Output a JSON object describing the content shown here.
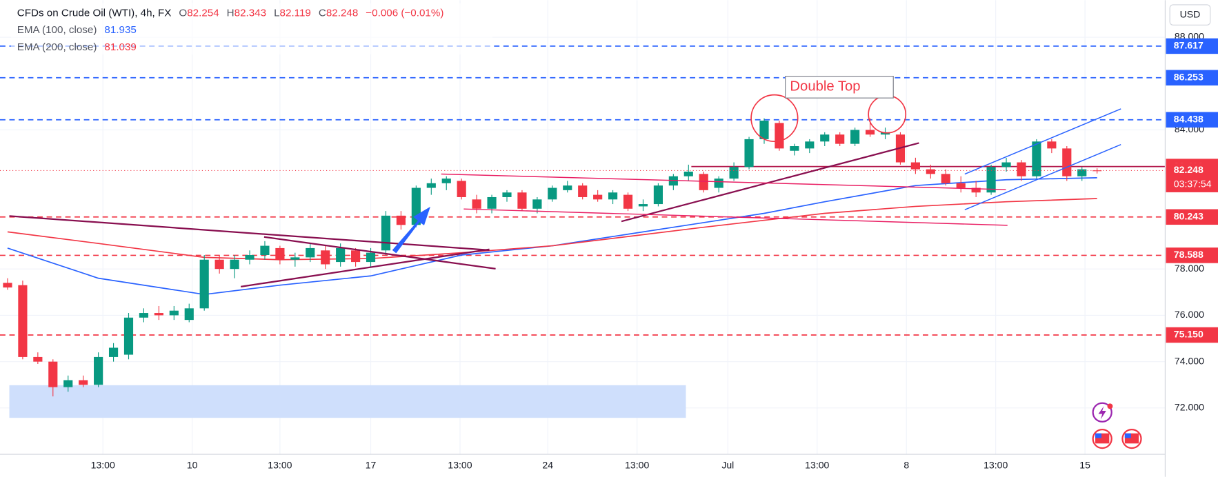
{
  "chart_data": {
    "type": "candlestick",
    "title": "CFDs on Crude Oil (WTI), 4h, FX",
    "ohlc_labels": [
      "O",
      "H",
      "L",
      "C"
    ],
    "change": "−0.006 (−0.01%)",
    "currency": "USD",
    "annotation": "Double Top",
    "countdown": "03:37:54",
    "up_color": "#089981",
    "down_color": "#f23645",
    "grid": true,
    "xlim": [
      -0.5,
      76.5
    ],
    "ylim": [
      70,
      89.6
    ],
    "xticks": [
      {
        "value": 6.3,
        "label": "13:00"
      },
      {
        "value": 12.2,
        "label": "10"
      },
      {
        "value": 18.0,
        "label": "13:00"
      },
      {
        "value": 24.0,
        "label": "17"
      },
      {
        "value": 29.9,
        "label": "13:00"
      },
      {
        "value": 35.7,
        "label": "24"
      },
      {
        "value": 41.6,
        "label": "13:00"
      },
      {
        "value": 47.6,
        "label": "Jul"
      },
      {
        "value": 53.5,
        "label": "13:00"
      },
      {
        "value": 59.4,
        "label": "8"
      },
      {
        "value": 65.3,
        "label": "13:00"
      },
      {
        "value": 71.2,
        "label": "15"
      }
    ],
    "yticks": [
      {
        "value": 72,
        "label": "72.000"
      },
      {
        "value": 74,
        "label": "74.000"
      },
      {
        "value": 76,
        "label": "76.000"
      },
      {
        "value": 78,
        "label": "78.000"
      },
      {
        "value": 84,
        "label": "84.000"
      },
      {
        "value": 88,
        "label": "88.000"
      }
    ],
    "open": [
      77.4,
      77.3,
      74.2,
      74.0,
      72.9,
      73.2,
      73.0,
      74.2,
      74.3,
      75.9,
      76.1,
      76.0,
      75.8,
      76.3,
      78.4,
      78.0,
      78.4,
      78.6,
      78.9,
      78.4,
      78.5,
      78.8,
      78.3,
      78.8,
      78.3,
      78.8,
      80.3,
      79.9,
      81.5,
      81.7,
      81.8,
      81.0,
      80.6,
      81.1,
      81.3,
      80.6,
      81.0,
      81.4,
      81.6,
      81.2,
      81.0,
      81.2,
      80.7,
      80.8,
      81.6,
      82.0,
      82.1,
      81.5,
      81.9,
      82.4,
      83.6,
      84.3,
      83.1,
      83.2,
      83.5,
      83.8,
      83.4,
      84.0,
      83.8,
      83.8,
      82.6,
      82.3,
      82.1,
      81.7,
      81.5,
      81.3,
      82.4,
      82.6,
      82.0,
      83.5,
      83.2,
      82.0,
      82.254
    ],
    "high": [
      77.6,
      77.5,
      74.4,
      74.1,
      73.4,
      73.4,
      74.4,
      74.8,
      76.1,
      76.3,
      76.4,
      76.4,
      76.5,
      78.6,
      78.6,
      78.6,
      78.8,
      79.2,
      79.0,
      78.7,
      79.1,
      79.0,
      79.1,
      78.9,
      78.9,
      80.5,
      80.5,
      81.6,
      81.9,
      82.0,
      81.9,
      81.2,
      81.2,
      81.4,
      81.4,
      81.1,
      81.6,
      81.8,
      81.7,
      81.4,
      81.4,
      81.3,
      81.0,
      81.7,
      82.1,
      82.5,
      82.2,
      82.0,
      82.6,
      83.7,
      84.5,
      84.4,
      83.4,
      83.6,
      83.9,
      83.9,
      84.1,
      84.5,
      84.1,
      83.9,
      82.8,
      82.5,
      82.3,
      82.0,
      81.8,
      82.5,
      82.8,
      82.7,
      83.6,
      83.6,
      83.3,
      82.4,
      82.343
    ],
    "low": [
      77.1,
      74.1,
      73.9,
      72.5,
      72.7,
      72.9,
      72.9,
      74.0,
      74.1,
      75.7,
      75.8,
      75.8,
      75.7,
      76.2,
      77.8,
      77.6,
      78.2,
      78.4,
      78.2,
      78.1,
      78.3,
      78.0,
      78.1,
      78.1,
      78.1,
      78.6,
      79.7,
      79.8,
      81.2,
      81.4,
      81.0,
      80.4,
      80.4,
      80.9,
      80.5,
      80.4,
      80.9,
      81.3,
      81.0,
      80.9,
      80.8,
      80.5,
      80.5,
      80.7,
      81.4,
      81.8,
      81.3,
      81.3,
      81.8,
      82.3,
      83.4,
      83.1,
      82.9,
      83.0,
      83.3,
      83.3,
      83.3,
      83.7,
      83.6,
      82.5,
      82.1,
      81.9,
      81.6,
      81.3,
      81.1,
      81.2,
      82.2,
      81.8,
      81.9,
      83.0,
      81.8,
      81.8,
      82.119
    ],
    "close": [
      77.2,
      74.2,
      74.0,
      72.9,
      73.2,
      73.0,
      74.2,
      74.6,
      75.9,
      76.1,
      76.0,
      76.2,
      76.3,
      78.4,
      78.0,
      78.4,
      78.6,
      79.0,
      78.4,
      78.5,
      78.9,
      78.2,
      78.9,
      78.3,
      78.7,
      80.3,
      79.9,
      81.5,
      81.7,
      81.9,
      81.1,
      80.6,
      81.1,
      81.3,
      80.6,
      81.0,
      81.5,
      81.6,
      81.1,
      81.0,
      81.3,
      80.6,
      80.8,
      81.6,
      82.0,
      82.2,
      81.4,
      81.9,
      82.4,
      83.6,
      84.4,
      83.2,
      83.3,
      83.5,
      83.8,
      83.4,
      84.0,
      83.8,
      83.9,
      82.6,
      82.3,
      82.1,
      81.7,
      81.5,
      81.3,
      82.4,
      82.6,
      82.0,
      83.5,
      83.2,
      82.0,
      82.3,
      82.248
    ],
    "series": [
      {
        "name": "EMA (100, close)",
        "color": "#2962ff",
        "x": [
          0,
          6,
          13,
          18,
          24,
          30,
          36,
          41,
          46,
          50,
          54,
          60,
          66,
          72
        ],
        "values": [
          78.9,
          77.6,
          76.9,
          77.3,
          77.7,
          78.6,
          79.0,
          79.5,
          80.0,
          80.4,
          80.9,
          81.6,
          81.85,
          81.935
        ]
      },
      {
        "name": "EMA (200, close)",
        "color": "#f23645",
        "x": [
          0,
          6,
          13,
          18,
          24,
          30,
          36,
          41,
          46,
          50,
          54,
          60,
          66,
          72
        ],
        "values": [
          79.6,
          79.1,
          78.5,
          78.4,
          78.45,
          78.7,
          79.0,
          79.4,
          79.8,
          80.1,
          80.4,
          80.7,
          80.9,
          81.039
        ]
      }
    ],
    "levels": [
      {
        "value": 87.617,
        "color": "#2962ff",
        "style": "dashed"
      },
      {
        "value": 86.253,
        "color": "#2962ff",
        "style": "dashed"
      },
      {
        "value": 84.438,
        "color": "#2962ff",
        "style": "dashed"
      },
      {
        "value": 82.419,
        "color": "#b2184b",
        "style": "solid"
      },
      {
        "value": 80.243,
        "color": "#f23645",
        "style": "dashed"
      },
      {
        "value": 78.588,
        "color": "#f23645",
        "style": "dashed"
      },
      {
        "value": 75.15,
        "label": "75.150",
        "color": "#f23645",
        "style": "dashed"
      }
    ]
  }
}
